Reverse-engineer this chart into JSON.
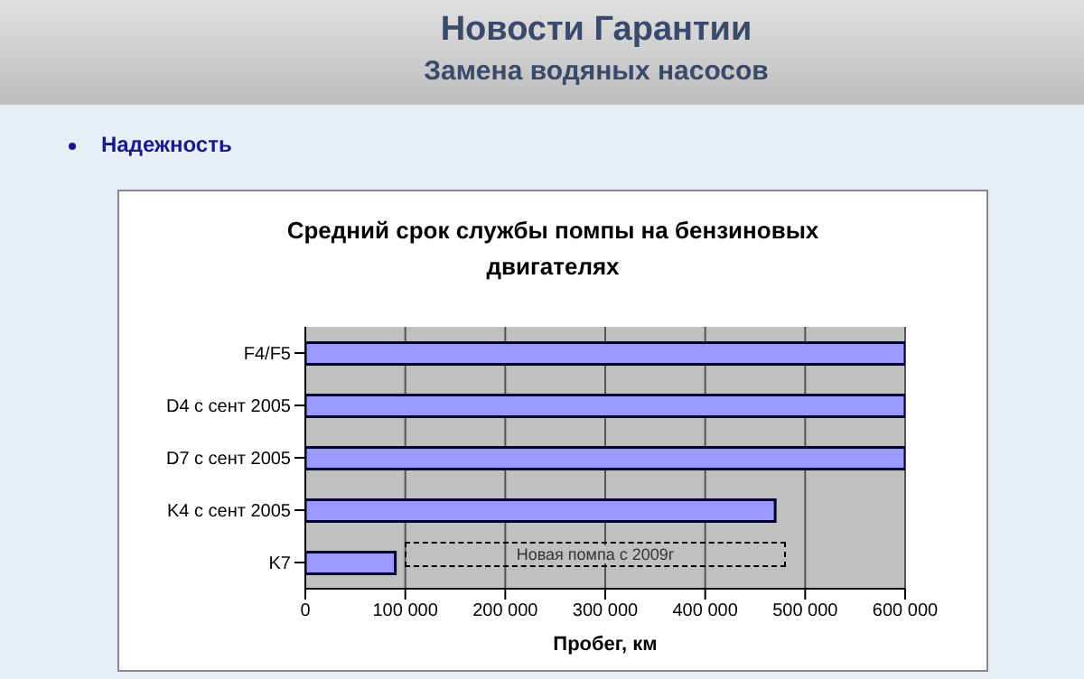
{
  "chart_data": {
    "type": "bar",
    "orientation": "horizontal",
    "title": "Средний срок службы помпы на бензиновых двигателях",
    "xlabel": "Пробег, км",
    "categories": [
      "F4/F5",
      "D4 с сент 2005",
      "D7 с сент 2005",
      "K4 с сент 2005",
      "K7"
    ],
    "values": [
      600000,
      600000,
      600000,
      470000,
      90000
    ],
    "color": "#9999ff",
    "xlim": [
      0,
      600000
    ],
    "xticks": [
      0,
      {
        "value": 100000,
        "label": "100 000"
      },
      {
        "value": 200000,
        "label": "200 000"
      },
      {
        "value": 300000,
        "label": "300 000"
      },
      {
        "value": 400000,
        "label": "400 000"
      },
      {
        "value": 500000,
        "label": "500 000"
      },
      {
        "value": 600000,
        "label": "600 000"
      }
    ],
    "grid": "x",
    "legend": false,
    "annotations": [
      "Новости Гарантии",
      "Замена водяных насосов",
      "Надежность",
      "Новая помпа с 2009г"
    ]
  }
}
